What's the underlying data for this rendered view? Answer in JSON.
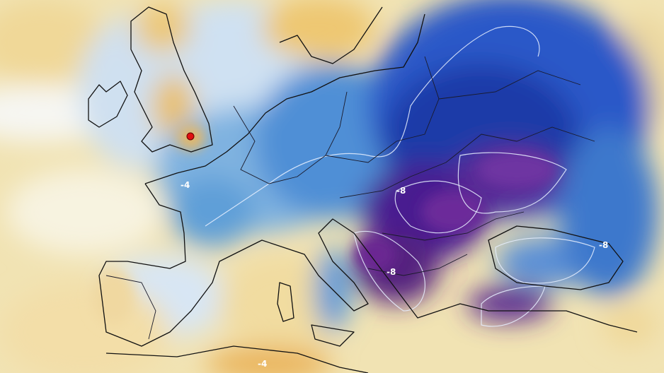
{
  "contour_labels": [
    {
      "text": "-4"
    },
    {
      "text": "-8"
    },
    {
      "text": "-8"
    },
    {
      "text": "-8"
    },
    {
      "text": "-4"
    }
  ]
}
